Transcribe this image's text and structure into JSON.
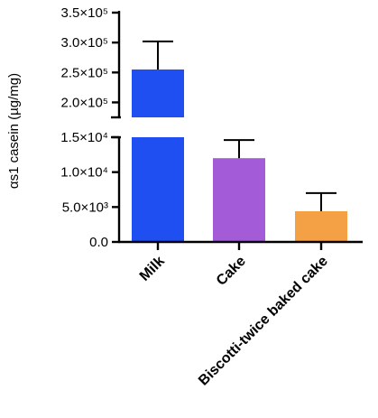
{
  "chart_data": {
    "type": "bar",
    "ylabel": "αs1 casein (µg/mg)",
    "axis_break": true,
    "categories": [
      "Milk",
      "Cake",
      "Biscotti-twice baked cake"
    ],
    "values": [
      255000,
      12000,
      4400
    ],
    "errors_up": [
      47000,
      2600,
      2600
    ],
    "colors": [
      "#1f4ff0",
      "#a45bd8",
      "#f4a145"
    ],
    "lower_segment": {
      "ylim": [
        0,
        15000
      ],
      "ticks": [
        0,
        5000,
        10000,
        15000
      ],
      "tick_labels": [
        "0.0",
        "5.0×10³",
        "1.0×10⁴",
        "1.5×10⁴"
      ]
    },
    "upper_segment": {
      "ylim": [
        175000,
        350000
      ],
      "ticks": [
        200000,
        250000,
        300000,
        350000
      ],
      "tick_labels": [
        "2.0×10⁵",
        "2.5×10⁵",
        "3.0×10⁵",
        "3.5×10⁵"
      ]
    }
  }
}
